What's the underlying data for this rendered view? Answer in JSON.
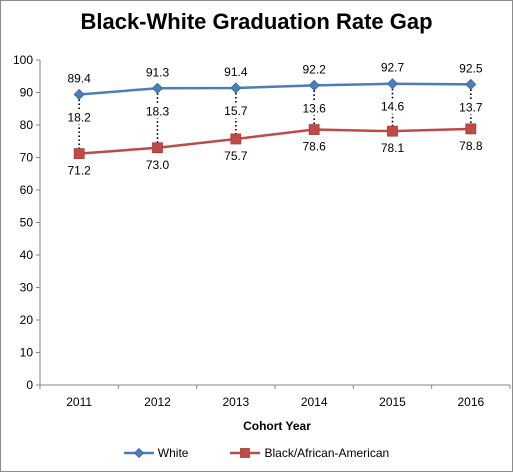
{
  "chart_data": {
    "type": "line",
    "title": "Black-White Graduation Rate Gap",
    "xlabel": "Cohort Year",
    "ylabel": "",
    "categories": [
      "2011",
      "2012",
      "2013",
      "2014",
      "2015",
      "2016"
    ],
    "ylim": [
      0,
      100
    ],
    "yticks": [
      0,
      10,
      20,
      30,
      40,
      50,
      60,
      70,
      80,
      90,
      100
    ],
    "grid": false,
    "legend_position": "bottom",
    "series": [
      {
        "name": "White",
        "color": "#4a7ebb",
        "marker": "diamond",
        "values": [
          89.4,
          91.3,
          91.4,
          92.2,
          92.7,
          92.5
        ]
      },
      {
        "name": "Black/African-American",
        "color": "#be4b48",
        "marker": "square",
        "values": [
          71.2,
          73.0,
          75.7,
          78.6,
          78.1,
          78.8
        ]
      }
    ],
    "gap_labels": [
      "18.2",
      "18.3",
      "15.7",
      "13.6",
      "14.6",
      "13.7"
    ]
  }
}
